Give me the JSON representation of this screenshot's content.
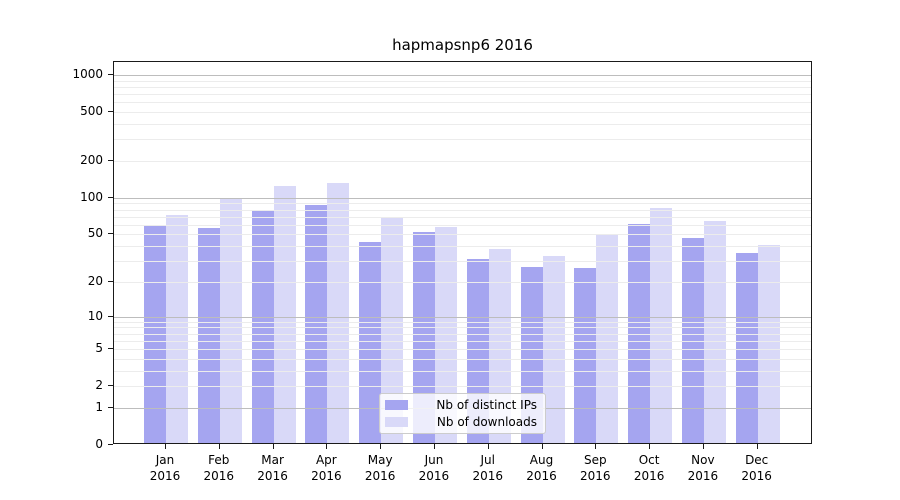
{
  "title": "hapmapsnp6 2016",
  "chart_data": {
    "type": "bar",
    "title": "hapmapsnp6 2016",
    "categories": [
      "Jan",
      "Feb",
      "Mar",
      "Apr",
      "May",
      "Jun",
      "Jul",
      "Aug",
      "Sep",
      "Oct",
      "Nov",
      "Dec"
    ],
    "category_year": "2016",
    "series": [
      {
        "name": "Nb of distinct IPs",
        "key": "distinct-ips",
        "color": "#a5a5f0",
        "values": [
          59,
          56,
          79,
          88,
          43,
          52,
          31,
          27,
          26,
          61,
          47,
          35
        ]
      },
      {
        "name": "Nb of downloads",
        "key": "downloads",
        "color": "#d9d9f8",
        "values": [
          72,
          97,
          125,
          133,
          68,
          58,
          38,
          33,
          50,
          82,
          65,
          41
        ]
      }
    ],
    "y_ticks": [
      0,
      1,
      2,
      5,
      10,
      20,
      50,
      100,
      200,
      500,
      1000
    ],
    "y_scale": "log10(value+1)",
    "ylim": [
      0,
      1270
    ],
    "grid": "on",
    "grid_major_at": [
      1,
      10,
      100,
      1000
    ],
    "legend_position": "lower center"
  },
  "legend": {
    "items": [
      {
        "label": "Nb of distinct IPs",
        "color": "#a5a5f0"
      },
      {
        "label": "Nb of downloads",
        "color": "#d9d9f8"
      }
    ]
  },
  "colors": {
    "bar_distinct_ips": "#a5a5f0",
    "bar_downloads": "#d9d9f8",
    "grid_major": "#bdbdbd",
    "grid_minor": "#ececec",
    "frame": "#1a1a1a",
    "text": "#000000",
    "legend_border": "#cccccc",
    "background": "#ffffff"
  }
}
